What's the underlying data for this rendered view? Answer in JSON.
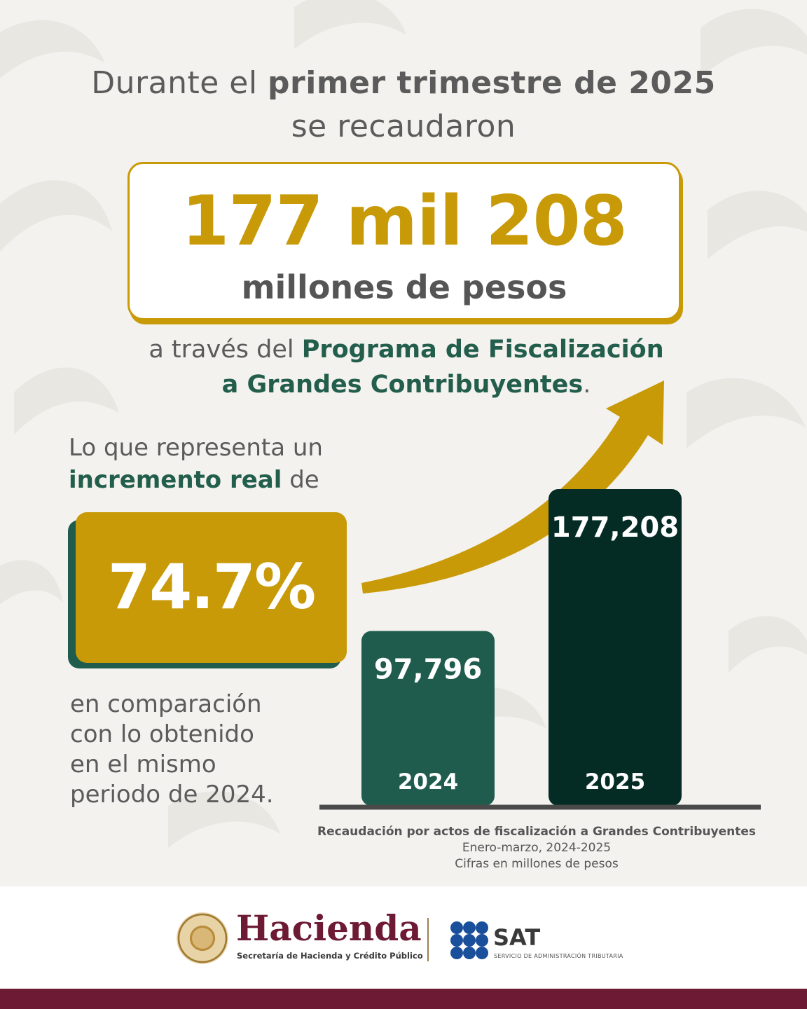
{
  "headline": {
    "line1_prefix": "Durante el ",
    "line1_bold": "primer trimestre de 2025",
    "line2": "se recaudaron"
  },
  "amount": {
    "value": "177 mil 208",
    "unit": "millones de pesos"
  },
  "program": {
    "prefix": "a través del ",
    "name_line1": "Programa de Fiscalización",
    "name_line2": "a Grandes Contribuyentes",
    "suffix": "."
  },
  "increase": {
    "lead_line1": "Lo que representa un",
    "lead_bold": "incremento real",
    "lead_after": " de",
    "percent": "74.7%",
    "comparison": [
      "en comparación",
      "con lo obtenido",
      "en el mismo",
      "periodo de 2024."
    ]
  },
  "chart_data": {
    "type": "bar",
    "title": "Recaudación por actos de fiscalización a Grandes Contribuyentes",
    "subtitle": [
      "Enero-marzo, 2024-2025",
      "Cifras en millones de pesos"
    ],
    "categories": [
      "2024",
      "2025"
    ],
    "values": [
      97796,
      177208
    ],
    "value_labels": [
      "97,796",
      "177,208"
    ],
    "bar_colors": [
      "#1f5c4e",
      "#042c25"
    ],
    "ylim": [
      0,
      177208
    ],
    "xlabel": "",
    "ylabel": "",
    "grid": false
  },
  "footer": {
    "hacienda_name": "Hacienda",
    "hacienda_sub": "Secretaría de Hacienda y Crédito Público",
    "sat_name": "SAT",
    "sat_sub": "SERVICIO DE ADMINISTRACIÓN TRIBUTARIA"
  },
  "icons": {
    "seal": "mexican-coat-of-arms-seal-icon",
    "arrow": "upward-trend-arrow-icon",
    "sat_logo": "sat-dots-logo-icon"
  },
  "colors": {
    "gold": "#c99a08",
    "green": "#235e4c",
    "dark_green": "#042c25",
    "maroon": "#6d1a34",
    "text_gray": "#5b5b5b"
  }
}
